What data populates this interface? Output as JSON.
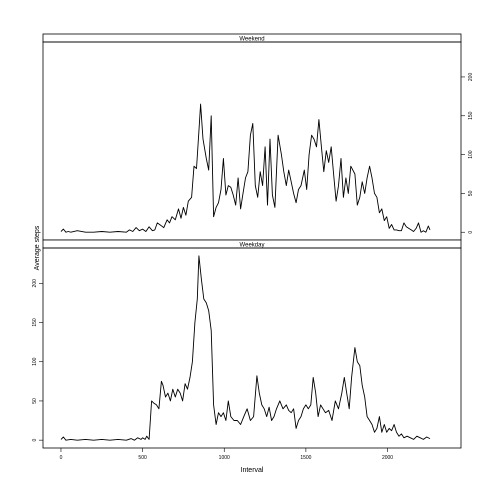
{
  "chart_data": {
    "type": "line",
    "title": "",
    "xlabel": "Interval",
    "ylabel": "Average steps",
    "xlim": [
      -110,
      2450
    ],
    "ylim": [
      -10,
      245
    ],
    "x_ticks": [
      0,
      500,
      1000,
      1500,
      2000
    ],
    "y_ticks": [
      0,
      50,
      100,
      150,
      200
    ],
    "grid": false,
    "panels": [
      {
        "name": "Weekend",
        "y_axis_side": "right",
        "points": [
          [
            0,
            1
          ],
          [
            15,
            4
          ],
          [
            30,
            0
          ],
          [
            45,
            1
          ],
          [
            60,
            0
          ],
          [
            100,
            2
          ],
          [
            150,
            0
          ],
          [
            200,
            0
          ],
          [
            250,
            1
          ],
          [
            300,
            0
          ],
          [
            350,
            1
          ],
          [
            400,
            0
          ],
          [
            420,
            3
          ],
          [
            440,
            1
          ],
          [
            460,
            6
          ],
          [
            480,
            2
          ],
          [
            500,
            4
          ],
          [
            520,
            1
          ],
          [
            540,
            7
          ],
          [
            560,
            2
          ],
          [
            575,
            3
          ],
          [
            590,
            12
          ],
          [
            610,
            9
          ],
          [
            630,
            6
          ],
          [
            650,
            16
          ],
          [
            665,
            12
          ],
          [
            680,
            20
          ],
          [
            700,
            16
          ],
          [
            720,
            30
          ],
          [
            735,
            18
          ],
          [
            750,
            32
          ],
          [
            765,
            22
          ],
          [
            780,
            40
          ],
          [
            800,
            45
          ],
          [
            815,
            85
          ],
          [
            830,
            82
          ],
          [
            845,
            130
          ],
          [
            855,
            165
          ],
          [
            870,
            120
          ],
          [
            890,
            95
          ],
          [
            905,
            80
          ],
          [
            920,
            150
          ],
          [
            935,
            20
          ],
          [
            950,
            32
          ],
          [
            965,
            38
          ],
          [
            980,
            55
          ],
          [
            995,
            95
          ],
          [
            1010,
            48
          ],
          [
            1025,
            60
          ],
          [
            1040,
            58
          ],
          [
            1055,
            48
          ],
          [
            1070,
            35
          ],
          [
            1085,
            70
          ],
          [
            1100,
            30
          ],
          [
            1115,
            50
          ],
          [
            1130,
            70
          ],
          [
            1145,
            78
          ],
          [
            1160,
            125
          ],
          [
            1175,
            140
          ],
          [
            1190,
            60
          ],
          [
            1205,
            45
          ],
          [
            1220,
            78
          ],
          [
            1235,
            60
          ],
          [
            1250,
            110
          ],
          [
            1265,
            35
          ],
          [
            1280,
            120
          ],
          [
            1295,
            48
          ],
          [
            1310,
            32
          ],
          [
            1330,
            125
          ],
          [
            1350,
            100
          ],
          [
            1365,
            78
          ],
          [
            1380,
            60
          ],
          [
            1395,
            80
          ],
          [
            1410,
            65
          ],
          [
            1425,
            50
          ],
          [
            1440,
            38
          ],
          [
            1455,
            55
          ],
          [
            1470,
            60
          ],
          [
            1490,
            80
          ],
          [
            1505,
            55
          ],
          [
            1520,
            100
          ],
          [
            1535,
            125
          ],
          [
            1550,
            120
          ],
          [
            1565,
            110
          ],
          [
            1580,
            145
          ],
          [
            1595,
            110
          ],
          [
            1610,
            78
          ],
          [
            1625,
            105
          ],
          [
            1640,
            90
          ],
          [
            1655,
            110
          ],
          [
            1670,
            75
          ],
          [
            1685,
            40
          ],
          [
            1700,
            60
          ],
          [
            1715,
            95
          ],
          [
            1730,
            45
          ],
          [
            1745,
            70
          ],
          [
            1760,
            50
          ],
          [
            1775,
            85
          ],
          [
            1800,
            75
          ],
          [
            1815,
            35
          ],
          [
            1830,
            45
          ],
          [
            1845,
            65
          ],
          [
            1860,
            50
          ],
          [
            1875,
            70
          ],
          [
            1890,
            85
          ],
          [
            1905,
            70
          ],
          [
            1920,
            50
          ],
          [
            1935,
            45
          ],
          [
            1950,
            25
          ],
          [
            1965,
            30
          ],
          [
            1980,
            15
          ],
          [
            1995,
            20
          ],
          [
            2010,
            5
          ],
          [
            2025,
            10
          ],
          [
            2040,
            3
          ],
          [
            2055,
            3
          ],
          [
            2070,
            2
          ],
          [
            2085,
            2
          ],
          [
            2100,
            12
          ],
          [
            2115,
            7
          ],
          [
            2130,
            5
          ],
          [
            2145,
            3
          ],
          [
            2160,
            1
          ],
          [
            2175,
            5
          ],
          [
            2190,
            12
          ],
          [
            2205,
            0
          ],
          [
            2220,
            2
          ],
          [
            2235,
            0
          ],
          [
            2250,
            8
          ],
          [
            2260,
            3
          ]
        ]
      },
      {
        "name": "Weekday",
        "y_axis_side": "left",
        "points": [
          [
            0,
            1
          ],
          [
            15,
            4
          ],
          [
            30,
            0
          ],
          [
            60,
            1
          ],
          [
            100,
            0
          ],
          [
            150,
            1
          ],
          [
            200,
            0
          ],
          [
            250,
            1
          ],
          [
            300,
            0
          ],
          [
            350,
            1
          ],
          [
            400,
            0
          ],
          [
            430,
            2
          ],
          [
            450,
            0
          ],
          [
            470,
            3
          ],
          [
            490,
            1
          ],
          [
            500,
            3
          ],
          [
            515,
            1
          ],
          [
            525,
            5
          ],
          [
            540,
            1
          ],
          [
            555,
            50
          ],
          [
            570,
            47
          ],
          [
            585,
            45
          ],
          [
            600,
            40
          ],
          [
            615,
            75
          ],
          [
            625,
            70
          ],
          [
            640,
            55
          ],
          [
            655,
            60
          ],
          [
            670,
            50
          ],
          [
            685,
            65
          ],
          [
            700,
            55
          ],
          [
            715,
            65
          ],
          [
            730,
            60
          ],
          [
            745,
            50
          ],
          [
            760,
            72
          ],
          [
            775,
            65
          ],
          [
            790,
            80
          ],
          [
            805,
            100
          ],
          [
            820,
            150
          ],
          [
            835,
            180
          ],
          [
            845,
            235
          ],
          [
            860,
            205
          ],
          [
            875,
            180
          ],
          [
            890,
            175
          ],
          [
            905,
            165
          ],
          [
            920,
            140
          ],
          [
            935,
            45
          ],
          [
            950,
            20
          ],
          [
            965,
            35
          ],
          [
            980,
            30
          ],
          [
            995,
            35
          ],
          [
            1010,
            25
          ],
          [
            1025,
            50
          ],
          [
            1040,
            30
          ],
          [
            1060,
            25
          ],
          [
            1080,
            25
          ],
          [
            1100,
            20
          ],
          [
            1120,
            30
          ],
          [
            1140,
            40
          ],
          [
            1160,
            25
          ],
          [
            1180,
            30
          ],
          [
            1200,
            82
          ],
          [
            1215,
            60
          ],
          [
            1230,
            45
          ],
          [
            1245,
            40
          ],
          [
            1260,
            30
          ],
          [
            1275,
            42
          ],
          [
            1290,
            25
          ],
          [
            1305,
            30
          ],
          [
            1320,
            40
          ],
          [
            1340,
            50
          ],
          [
            1360,
            40
          ],
          [
            1380,
            45
          ],
          [
            1395,
            38
          ],
          [
            1410,
            35
          ],
          [
            1425,
            40
          ],
          [
            1440,
            15
          ],
          [
            1455,
            25
          ],
          [
            1470,
            30
          ],
          [
            1485,
            40
          ],
          [
            1500,
            45
          ],
          [
            1515,
            40
          ],
          [
            1530,
            45
          ],
          [
            1545,
            80
          ],
          [
            1560,
            60
          ],
          [
            1575,
            30
          ],
          [
            1590,
            45
          ],
          [
            1605,
            40
          ],
          [
            1620,
            35
          ],
          [
            1640,
            38
          ],
          [
            1660,
            25
          ],
          [
            1680,
            50
          ],
          [
            1700,
            40
          ],
          [
            1720,
            60
          ],
          [
            1735,
            80
          ],
          [
            1750,
            60
          ],
          [
            1765,
            40
          ],
          [
            1780,
            80
          ],
          [
            1800,
            118
          ],
          [
            1815,
            100
          ],
          [
            1830,
            95
          ],
          [
            1845,
            70
          ],
          [
            1860,
            55
          ],
          [
            1875,
            30
          ],
          [
            1890,
            25
          ],
          [
            1905,
            20
          ],
          [
            1920,
            10
          ],
          [
            1935,
            15
          ],
          [
            1950,
            30
          ],
          [
            1965,
            10
          ],
          [
            1980,
            20
          ],
          [
            1995,
            10
          ],
          [
            2010,
            15
          ],
          [
            2025,
            12
          ],
          [
            2040,
            20
          ],
          [
            2055,
            10
          ],
          [
            2070,
            5
          ],
          [
            2085,
            8
          ],
          [
            2100,
            3
          ],
          [
            2120,
            5
          ],
          [
            2140,
            3
          ],
          [
            2160,
            1
          ],
          [
            2180,
            5
          ],
          [
            2200,
            3
          ],
          [
            2220,
            1
          ],
          [
            2240,
            4
          ],
          [
            2260,
            2
          ]
        ]
      }
    ]
  }
}
